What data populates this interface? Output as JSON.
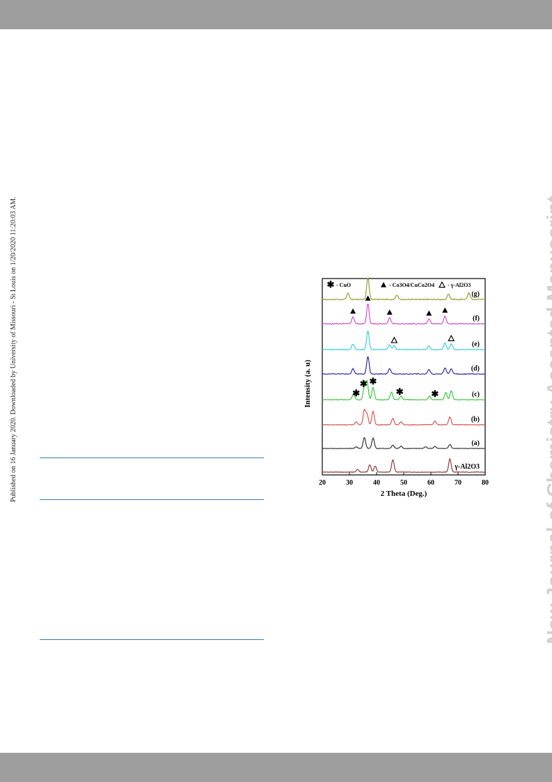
{
  "page": {
    "side_note": "Published on 16 January 2020. Downloaded by University of Missouri - St Louis on 1/20/2020 11:20:03 AM.",
    "watermark": "New Journal of Chemistry Accepted Manuscript",
    "band_color": "#9e9e9e",
    "rule_color": "#3a78b5"
  },
  "chart_data": {
    "type": "line",
    "xlabel": "2 Theta (Deg.)",
    "ylabel": "Intensity (a. u)",
    "xlim": [
      20,
      80
    ],
    "xticks": [
      20,
      30,
      40,
      50,
      60,
      70,
      80
    ],
    "legend": {
      "placement": "top",
      "entries": [
        {
          "marker": "star",
          "label": "- CuO"
        },
        {
          "marker": "triangle-filled",
          "label": "- Co3O4/CuCo2O4"
        },
        {
          "marker": "triangle-open",
          "label": "- γ-Al2O3"
        }
      ]
    },
    "series": [
      {
        "name": "γ-Al2O3",
        "color": "#8b3a3a",
        "peaks": [
          [
            37.5,
            0.55
          ],
          [
            39.5,
            0.45
          ],
          [
            46,
            0.95
          ],
          [
            67,
            1.0
          ],
          [
            33,
            0.2
          ]
        ]
      },
      {
        "name": "(a)",
        "color": "#333333",
        "peaks": [
          [
            35.5,
            1.0
          ],
          [
            38.7,
            0.95
          ],
          [
            32.5,
            0.15
          ],
          [
            46,
            0.3
          ],
          [
            49,
            0.2
          ],
          [
            58,
            0.15
          ],
          [
            61.5,
            0.2
          ],
          [
            67,
            0.35
          ]
        ]
      },
      {
        "name": "(b)",
        "color": "#d9534f",
        "peaks": [
          [
            35.5,
            1.0
          ],
          [
            38.7,
            0.95
          ],
          [
            36.5,
            0.7
          ],
          [
            32.5,
            0.2
          ],
          [
            46,
            0.45
          ],
          [
            49,
            0.2
          ],
          [
            61.5,
            0.25
          ],
          [
            67,
            0.55
          ]
        ]
      },
      {
        "name": "(c)",
        "color": "#3cc83c",
        "peaks": [
          [
            36.5,
            1.0
          ],
          [
            35.5,
            0.7
          ],
          [
            38.7,
            0.7
          ],
          [
            31.5,
            0.35
          ],
          [
            45.5,
            0.45
          ],
          [
            49,
            0.2
          ],
          [
            59.5,
            0.2
          ],
          [
            65.5,
            0.4
          ],
          [
            67.5,
            0.5
          ]
        ]
      },
      {
        "name": "(d)",
        "color": "#2c2ca8",
        "peaks": [
          [
            36.8,
            1.0
          ],
          [
            31.3,
            0.3
          ],
          [
            44.8,
            0.3
          ],
          [
            59.3,
            0.25
          ],
          [
            65.2,
            0.35
          ],
          [
            67.5,
            0.3
          ]
        ]
      },
      {
        "name": "(e)",
        "color": "#38d0e0",
        "peaks": [
          [
            36.8,
            1.0
          ],
          [
            31.3,
            0.3
          ],
          [
            44.8,
            0.25
          ],
          [
            46.5,
            0.2
          ],
          [
            59.3,
            0.2
          ],
          [
            65.2,
            0.35
          ],
          [
            67.5,
            0.3
          ]
        ]
      },
      {
        "name": "(f)",
        "color": "#d050d0",
        "peaks": [
          [
            36.8,
            1.0
          ],
          [
            31.3,
            0.35
          ],
          [
            44.8,
            0.3
          ],
          [
            59.3,
            0.25
          ],
          [
            65.2,
            0.4
          ]
        ]
      },
      {
        "name": "(g)",
        "color": "#9a9a30",
        "peaks": [
          [
            36.8,
            1.0
          ],
          [
            29.5,
            0.3
          ],
          [
            47.5,
            0.2
          ],
          [
            66.5,
            0.25
          ],
          [
            74,
            0.3
          ]
        ]
      }
    ],
    "annotations": [
      {
        "series": "(f)",
        "marker": "triangle-filled",
        "x": [
          31.3,
          36.8,
          44.8,
          59.3,
          65.2
        ]
      },
      {
        "series": "(e)",
        "marker": "triangle-open",
        "x": [
          46.5,
          67.5
        ]
      },
      {
        "series": "(c)",
        "marker": "star",
        "x": [
          32.5,
          35.2,
          38.7,
          48.5,
          61.5
        ]
      }
    ]
  }
}
